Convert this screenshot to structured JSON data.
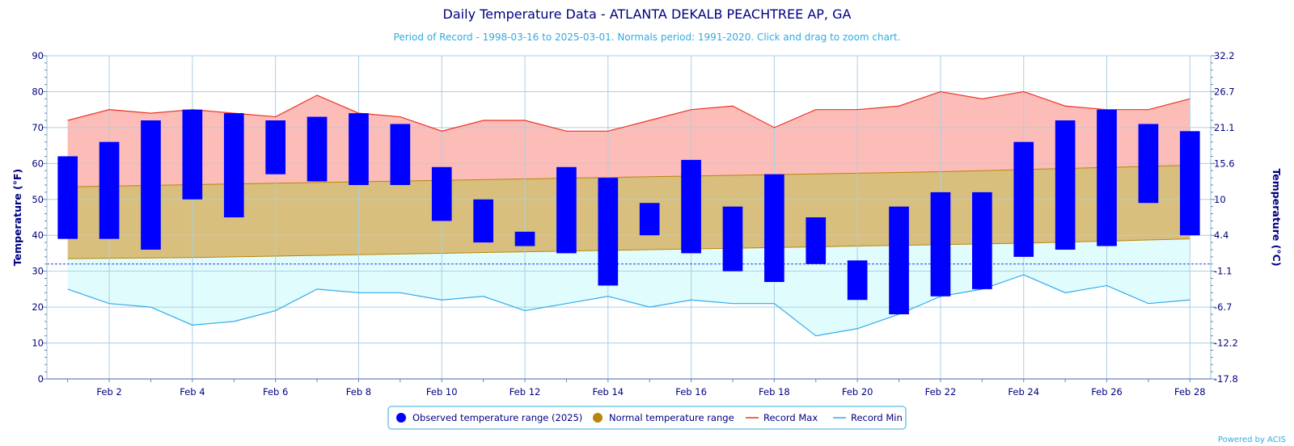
{
  "chart_data": {
    "type": "bar",
    "title": "Daily Temperature Data - ATLANTA DEKALB PEACHTREE AP, GA",
    "subtitle": "Period of Record - 1998-03-16 to 2025-03-01. Normals period: 1991-2020. Click and drag to zoom chart.",
    "ylabel": "Temperature (°F)",
    "ylabel_right": "Temperature (°C)",
    "ylim": [
      0,
      90
    ],
    "y_ticks": [
      0,
      10,
      20,
      30,
      40,
      50,
      60,
      70,
      80,
      90
    ],
    "y_ticks_right": [
      "-17.8",
      "-12.2",
      "-6.7",
      "-1.1",
      "4.4",
      "10",
      "15.6",
      "21.1",
      "26.7",
      "32.2"
    ],
    "x_tick_labels": [
      "Feb 2",
      "Feb 4",
      "Feb 6",
      "Feb 8",
      "Feb 10",
      "Feb 12",
      "Feb 14",
      "Feb 16",
      "Feb 18",
      "Feb 20",
      "Feb 22",
      "Feb 24",
      "Feb 26",
      "Feb 28"
    ],
    "freezing_line": 32,
    "grid": true,
    "legend_position": "bottom-center",
    "days": [
      1,
      2,
      3,
      4,
      5,
      6,
      7,
      8,
      9,
      10,
      11,
      12,
      13,
      14,
      15,
      16,
      17,
      18,
      19,
      20,
      21,
      22,
      23,
      24,
      25,
      26,
      27,
      28
    ],
    "series": [
      {
        "name": "Observed temperature range (2025)",
        "type": "columnrange",
        "color": "#0000ff",
        "low": [
          39,
          39,
          36,
          50,
          45,
          57,
          55,
          54,
          54,
          44,
          38,
          37,
          35,
          26,
          40,
          35,
          30,
          27,
          32,
          22,
          18,
          23,
          25,
          34,
          36,
          37,
          49,
          40
        ],
        "high": [
          62,
          66,
          72,
          75,
          74,
          72,
          73,
          74,
          71,
          59,
          50,
          41,
          59,
          56,
          49,
          61,
          48,
          57,
          45,
          33,
          48,
          52,
          52,
          66,
          72,
          75,
          71,
          69
        ]
      },
      {
        "name": "Normal temperature range",
        "type": "arearange",
        "color": "#b8860b",
        "low": [
          33.5,
          33.6,
          33.7,
          33.8,
          34.0,
          34.2,
          34.4,
          34.6,
          34.8,
          35.0,
          35.2,
          35.4,
          35.6,
          35.8,
          36.0,
          36.2,
          36.4,
          36.6,
          36.8,
          37.0,
          37.2,
          37.4,
          37.6,
          37.8,
          38.1,
          38.4,
          38.7,
          39.0
        ],
        "high": [
          53.5,
          53.7,
          53.9,
          54.1,
          54.3,
          54.5,
          54.7,
          54.9,
          55.1,
          55.3,
          55.5,
          55.7,
          55.9,
          56.1,
          56.3,
          56.5,
          56.7,
          56.9,
          57.1,
          57.3,
          57.5,
          57.7,
          58.0,
          58.3,
          58.6,
          58.9,
          59.2,
          59.5
        ]
      },
      {
        "name": "Record Max",
        "type": "line",
        "color": "#ee3322",
        "values": [
          72,
          75,
          74,
          75,
          74,
          73,
          79,
          74,
          73,
          69,
          72,
          72,
          69,
          69,
          72,
          75,
          76,
          70,
          75,
          75,
          76,
          80,
          78,
          80,
          76,
          75,
          75,
          78
        ]
      },
      {
        "name": "Record Min",
        "type": "line",
        "color": "#33aaee",
        "values": [
          25,
          21,
          20,
          15,
          16,
          19,
          25,
          24,
          24,
          22,
          23,
          19,
          21,
          23,
          20,
          22,
          21,
          21,
          12,
          14,
          18,
          23,
          25,
          29,
          24,
          26,
          21,
          22
        ]
      }
    ],
    "credit": "Powered by ACIS"
  }
}
